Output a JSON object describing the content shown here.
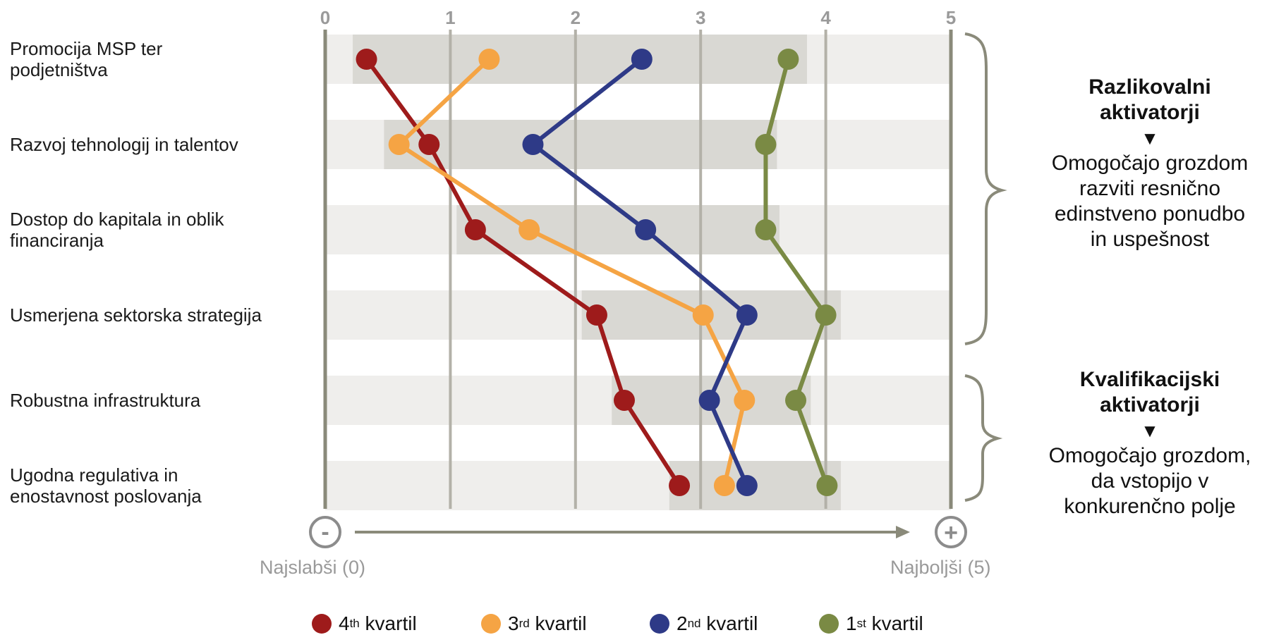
{
  "chart_data": {
    "type": "line",
    "x_axis": {
      "min": 0,
      "max": 5,
      "ticks": [
        "0",
        "1",
        "2",
        "3",
        "4",
        "5"
      ]
    },
    "categories": [
      "Promocija MSP ter\npodjetništva",
      "Razvoj tehnologij in talentov",
      "Dostop do kapitala in oblik\nfinanciranja",
      "Usmerjena sektorska strategija",
      "Robustna infrastruktura",
      "Ugodna regulativa in\nenostavnost poslovanja"
    ],
    "ranges": [
      [
        0.22,
        3.85
      ],
      [
        0.47,
        3.61
      ],
      [
        1.05,
        3.63
      ],
      [
        2.05,
        4.12
      ],
      [
        2.29,
        3.88
      ],
      [
        2.75,
        4.12
      ]
    ],
    "series": [
      {
        "name": "4th kvartil",
        "color": "#9e1b1b",
        "values": [
          0.33,
          0.83,
          1.2,
          2.17,
          2.39,
          2.83
        ]
      },
      {
        "name": "3rd kvartil",
        "color": "#f5a444",
        "values": [
          1.31,
          0.59,
          1.63,
          3.02,
          3.35,
          3.19
        ]
      },
      {
        "name": "2nd kvartil",
        "color": "#2e3a87",
        "values": [
          2.53,
          1.66,
          2.56,
          3.37,
          3.07,
          3.37
        ]
      },
      {
        "name": "1st kvartil",
        "color": "#7a8a44",
        "values": [
          3.7,
          3.52,
          3.52,
          4.0,
          3.76,
          4.01
        ]
      }
    ]
  },
  "axis_ends": {
    "minus_symbol": "-",
    "plus_symbol": "+",
    "worst_label": "Najslabši (0)",
    "best_label": "Najboljši (5)"
  },
  "groups": [
    {
      "title": "Razlikovalni\naktivatorji",
      "triangle": "▼",
      "description": "Omogočajo grozdom\nrazviti resnično\nedinstveno ponudbo\nin uspešnost"
    },
    {
      "title": "Kvalifikacijski\naktivatorji",
      "triangle": "▼",
      "description": "Omogočajo grozdom,\nda vstopijo v\nkonkurenčno polje"
    }
  ],
  "legend": [
    {
      "ord": "4",
      "sup": "th",
      "word": "kvartil",
      "color": "#9e1b1b"
    },
    {
      "ord": "3",
      "sup": "rd",
      "word": "kvartil",
      "color": "#f5a444"
    },
    {
      "ord": "2",
      "sup": "nd",
      "word": "kvartil",
      "color": "#2e3a87"
    },
    {
      "ord": "1",
      "sup": "st",
      "word": "kvartil",
      "color": "#7a8a44"
    }
  ]
}
